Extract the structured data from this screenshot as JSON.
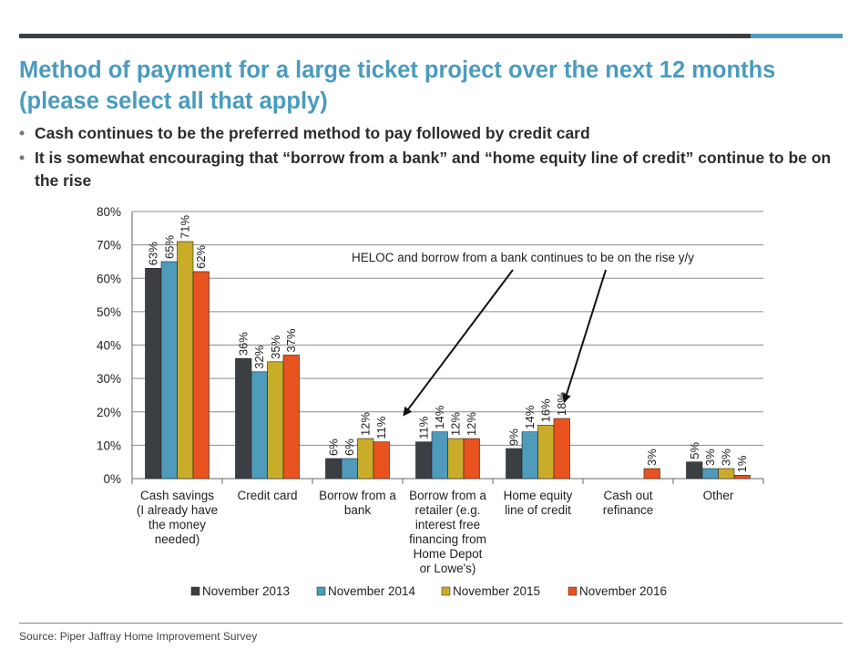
{
  "title": "Method of payment for a large ticket project over the next 12 months (please select all that apply)",
  "bullets": [
    "Cash continues to be the preferred method to pay followed by credit card",
    "It is somewhat encouraging that “borrow from a bank” and “home equity line of credit” continue to be on the rise"
  ],
  "source": "Source: Piper Jaffray Home Improvement Survey",
  "colors": {
    "title": "#4a9bbf",
    "series": [
      "#3b3f44",
      "#4e9bbb",
      "#c9ad2a",
      "#e8531f"
    ]
  },
  "chart_data": {
    "type": "bar",
    "categories": [
      [
        "Cash savings",
        "(I already have",
        "the money",
        "needed)"
      ],
      [
        "Credit card"
      ],
      [
        "Borrow from a",
        "bank"
      ],
      [
        "Borrow from a",
        "retailer (e.g.",
        "interest free",
        "financing from",
        "Home Depot",
        "or Lowe's)"
      ],
      [
        "Home equity",
        "line of credit"
      ],
      [
        "Cash out",
        "refinance"
      ],
      [
        "Other"
      ]
    ],
    "series": [
      {
        "name": "November 2013",
        "values": [
          63,
          36,
          6,
          11,
          9,
          null,
          5
        ],
        "labels": [
          "63%",
          "36%",
          "6%",
          "11%",
          "9%",
          "",
          "5%"
        ]
      },
      {
        "name": "November 2014",
        "values": [
          65,
          32,
          6,
          14,
          14,
          null,
          3
        ],
        "labels": [
          "65%",
          "32%",
          "6%",
          "14%",
          "14%",
          "",
          "3%"
        ]
      },
      {
        "name": "November 2015",
        "values": [
          71,
          35,
          12,
          12,
          16,
          null,
          3
        ],
        "labels": [
          "71%",
          "35%",
          "12%",
          "12%",
          "16%",
          "",
          "3%"
        ]
      },
      {
        "name": "November 2016",
        "values": [
          62,
          37,
          11,
          12,
          18,
          3,
          1
        ],
        "labels": [
          "62%",
          "37%",
          "11%",
          "12%",
          "18%",
          "3%",
          "1%"
        ]
      }
    ],
    "ylim": [
      0,
      80
    ],
    "yticks": [
      "0%",
      "10%",
      "20%",
      "30%",
      "40%",
      "50%",
      "60%",
      "70%",
      "80%"
    ],
    "ytick_values": [
      0,
      10,
      20,
      30,
      40,
      50,
      60,
      70,
      80
    ],
    "grid": true,
    "legend": "bottom",
    "annotation": {
      "text": "HELOC and borrow from a bank continues to be on the rise y/y",
      "targets": [
        "Borrow from a bank",
        "Home equity line of credit"
      ]
    }
  }
}
